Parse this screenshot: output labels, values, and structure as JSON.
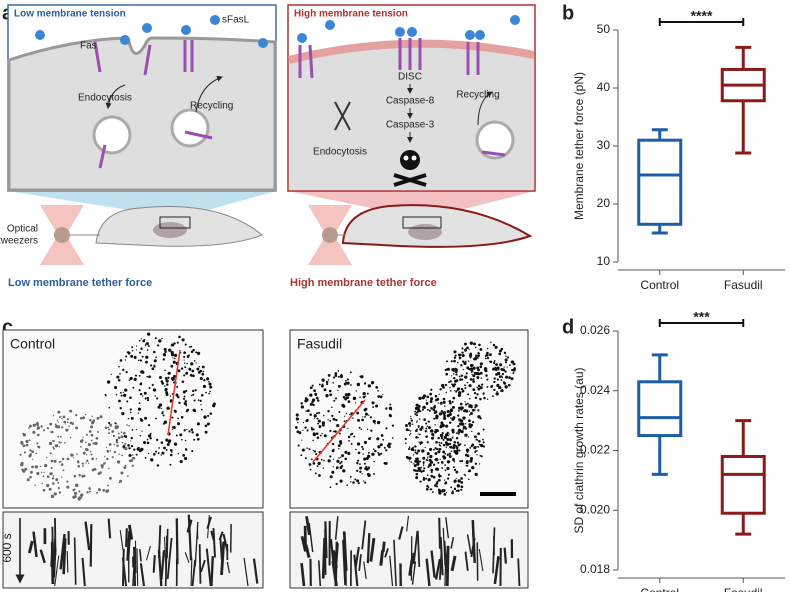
{
  "panels": {
    "a": "a",
    "b": "b",
    "c": "c",
    "d": "d"
  },
  "diagram": {
    "left": {
      "title": "Low membrane tension",
      "sfasl": "sFasL",
      "fas": "Fas",
      "endocytosis": "Endocytosis",
      "recycling": "Recycling",
      "tweezers": [
        "Optical",
        "tweezers"
      ],
      "caption": "Low membrane tether force"
    },
    "right": {
      "title": "High membrane tension",
      "disc": "DISC",
      "casp8": "Caspase-8",
      "casp3": "Caspase-3",
      "endocytosis": "Endocytosis",
      "recycling": "Recycling",
      "caption": "High membrane tether force"
    }
  },
  "images": {
    "left": "Control",
    "right": "Fasudil",
    "time": "600 s"
  },
  "chart_data": [
    {
      "type": "box",
      "ylabel": "Membrane tether force (pN)",
      "categories": [
        "Control",
        "Fasudil"
      ],
      "boxes": [
        {
          "color": "#1c5fa8",
          "min": 15,
          "q1": 16.5,
          "median": 25,
          "q3": 31,
          "max": 32.8
        },
        {
          "color": "#8b1a1a",
          "min": 28.8,
          "q1": 37.8,
          "median": 40.5,
          "q3": 43.2,
          "max": 47
        }
      ],
      "ylim": [
        10,
        50
      ],
      "yticks": [
        10,
        20,
        30,
        40,
        50
      ],
      "significance": "****"
    },
    {
      "type": "box",
      "ylabel": "SD of clathrin growth rates (au)",
      "categories": [
        "Control",
        "Fasudil"
      ],
      "boxes": [
        {
          "color": "#1c5fa8",
          "min": 0.0212,
          "q1": 0.0225,
          "median": 0.0231,
          "q3": 0.0243,
          "max": 0.0252
        },
        {
          "color": "#8b1a1a",
          "min": 0.0192,
          "q1": 0.0199,
          "median": 0.0212,
          "q3": 0.0218,
          "max": 0.023
        }
      ],
      "ylim": [
        0.018,
        0.026
      ],
      "yticks": [
        0.018,
        {
          "value": 0.02,
          "label": "0.020"
        },
        0.022,
        0.024,
        0.026
      ],
      "significance": "***"
    }
  ]
}
